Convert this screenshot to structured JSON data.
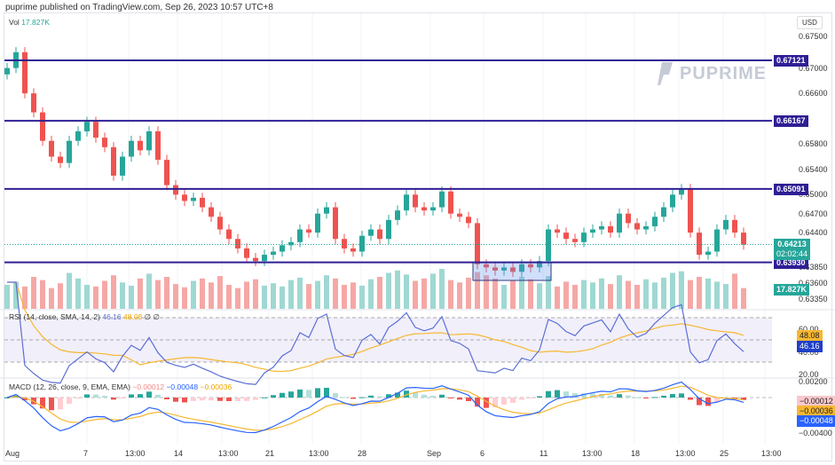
{
  "header": {
    "published": "puprime published on TradingView.com, Sep 26, 2023 10:57 UTC+8"
  },
  "logo": {
    "text": "PUPRIME"
  },
  "volume_legend": {
    "label": "Vol",
    "value": "17.827K"
  },
  "price_axis": {
    "currency": "USD",
    "ticks": [
      "0.67500",
      "0.67000",
      "0.66600",
      "0.65800",
      "0.65400",
      "0.65000",
      "0.64700",
      "0.64400",
      "0.63850",
      "0.63600",
      "0.63350"
    ]
  },
  "levels": [
    {
      "value": "0.67121",
      "price": 0.67121
    },
    {
      "value": "0.66167",
      "price": 0.66167
    },
    {
      "value": "0.65091",
      "price": 0.65091
    },
    {
      "value": "0.63930",
      "price": 0.6393
    }
  ],
  "last_price": {
    "value": "0.64213",
    "price": 0.64213,
    "countdown": "02:02:44"
  },
  "volume_tag": "17.827K",
  "rsi": {
    "legend": "RSI (14, close, SMA, 14, 2)",
    "rsi_value": "46.16",
    "sma_value": "48.08",
    "extra": "∅ ∅",
    "ticks": [
      "60.00",
      "40.00",
      "20.00"
    ],
    "tag_sma": "48.08",
    "tag_rsi": "46.16"
  },
  "macd": {
    "legend": "MACD (12, 26, close, 9, EMA, EMA)",
    "hist_value": "−0.00012",
    "macd_value": "−0.00048",
    "signal_value": "−0.00036",
    "ticks": [
      "0.00200",
      "−0.00400"
    ],
    "tag_hist": "−0.00012",
    "tag_signal": "−0.00036",
    "tag_macd": "−0.00048"
  },
  "time_axis": [
    "Aug",
    "7",
    "13:00",
    "14",
    "13:00",
    "21",
    "13:00",
    "28",
    "Sep",
    "6",
    "11",
    "13:00",
    "18",
    "13:00",
    "25",
    "13:00"
  ],
  "colors": {
    "up": "#26a69a",
    "down": "#ef5350",
    "level": "#2e1f94",
    "rsi": "#5b6fd6",
    "signal": "#f7b731"
  },
  "chart_data": {
    "type": "candlestick",
    "symbol": "AUDUSD-like",
    "ylim": [
      0.6335,
      0.675
    ],
    "closes": [
      0.67,
      0.6725,
      0.666,
      0.663,
      0.6585,
      0.656,
      0.655,
      0.6585,
      0.66,
      0.6615,
      0.659,
      0.6575,
      0.653,
      0.656,
      0.6585,
      0.657,
      0.66,
      0.6555,
      0.6515,
      0.65,
      0.649,
      0.6495,
      0.648,
      0.6465,
      0.6445,
      0.643,
      0.6415,
      0.64,
      0.6395,
      0.6405,
      0.641,
      0.642,
      0.6425,
      0.6445,
      0.644,
      0.647,
      0.648,
      0.643,
      0.6415,
      0.641,
      0.6435,
      0.6445,
      0.643,
      0.646,
      0.6475,
      0.65,
      0.648,
      0.6475,
      0.648,
      0.6505,
      0.647,
      0.6465,
      0.6455,
      0.639,
      0.6385,
      0.638,
      0.6385,
      0.6378,
      0.639,
      0.6385,
      0.6395,
      0.6445,
      0.644,
      0.643,
      0.6425,
      0.644,
      0.6445,
      0.645,
      0.644,
      0.647,
      0.6455,
      0.6445,
      0.645,
      0.6465,
      0.648,
      0.65,
      0.6509,
      0.644,
      0.6405,
      0.641,
      0.6445,
      0.646,
      0.644,
      0.6421
    ],
    "volumes": [
      30,
      34,
      28,
      40,
      36,
      26,
      32,
      45,
      38,
      30,
      28,
      35,
      42,
      33,
      29,
      38,
      44,
      36,
      40,
      31,
      27,
      35,
      38,
      33,
      41,
      30,
      26,
      34,
      37,
      29,
      32,
      28,
      36,
      39,
      31,
      35,
      42,
      38,
      30,
      33,
      29,
      37,
      40,
      45,
      48,
      43,
      35,
      38,
      44,
      50,
      36,
      33,
      39,
      46,
      42,
      38,
      30,
      35,
      40,
      37,
      32,
      41,
      28,
      34,
      30,
      36,
      33,
      38,
      31,
      42,
      35,
      30,
      37,
      33,
      39,
      45,
      47,
      36,
      40,
      38,
      34,
      31,
      44,
      26
    ]
  }
}
